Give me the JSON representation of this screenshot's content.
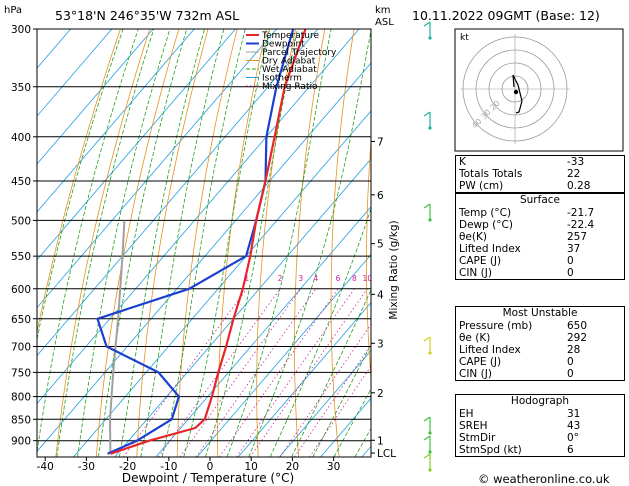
{
  "header": {
    "location": "53°18'N  246°35'W  732m  ASL",
    "datetime": "10.11.2022  09GMT  (Base: 12)",
    "unit_left": "hPa",
    "unit_right_1": "km",
    "unit_right_2": "ASL"
  },
  "chart_data": {
    "type": "skew-t log-p",
    "xlabel": "Dewpoint / Temperature (°C)",
    "ylabel_right": "Mixing Ratio (g/kg)",
    "pressure_levels": [
      300,
      350,
      400,
      450,
      500,
      550,
      600,
      650,
      700,
      750,
      800,
      850,
      900
    ],
    "temperature_ticks": [
      -40,
      -30,
      -20,
      -10,
      0,
      10,
      20,
      30
    ],
    "km_ticks": [
      {
        "label": "1",
        "p": 899
      },
      {
        "label": "2",
        "p": 792
      },
      {
        "label": "3",
        "p": 694
      },
      {
        "label": "4",
        "p": 609
      },
      {
        "label": "5",
        "p": 532
      },
      {
        "label": "6",
        "p": 467
      },
      {
        "label": "7",
        "p": 405
      },
      {
        "label": "LCL",
        "p": 930
      }
    ],
    "mixing_ratio_labels": [
      "1",
      "2",
      "3",
      "4",
      "6",
      "8",
      "10",
      "16",
      "20",
      "25"
    ],
    "mixing_ratio_values": [
      1,
      2,
      3,
      4,
      6,
      8,
      10,
      16,
      20,
      25
    ],
    "legend": [
      "Temperature",
      "Dewpoint",
      "Parcel Trajectory",
      "Dry Adiabat",
      "Wet Adiabat",
      "Isotherm",
      "Mixing Ratio"
    ],
    "colors": {
      "temperature": "#e8262a",
      "dewpoint": "#1a3fd1",
      "parcel": "#a0a0a0",
      "dry_adiabat": "#e89020",
      "wet_adiabat": "#20a020",
      "isotherm": "#20a0e0",
      "mixing_ratio": "#d020a0"
    },
    "temperature_profile": [
      {
        "p": 932,
        "t": -21.7
      },
      {
        "p": 900,
        "t": -15
      },
      {
        "p": 870,
        "t": -6.5
      },
      {
        "p": 850,
        "t": -6
      },
      {
        "p": 800,
        "t": -9
      },
      {
        "p": 750,
        "t": -12.5
      },
      {
        "p": 700,
        "t": -16
      },
      {
        "p": 650,
        "t": -20
      },
      {
        "p": 600,
        "t": -24
      },
      {
        "p": 550,
        "t": -29
      },
      {
        "p": 500,
        "t": -35
      },
      {
        "p": 450,
        "t": -41
      },
      {
        "p": 400,
        "t": -48
      },
      {
        "p": 350,
        "t": -56
      },
      {
        "p": 300,
        "t": -63
      }
    ],
    "dewpoint_profile": [
      {
        "p": 932,
        "t": -22.4
      },
      {
        "p": 900,
        "t": -18
      },
      {
        "p": 850,
        "t": -14
      },
      {
        "p": 800,
        "t": -17
      },
      {
        "p": 750,
        "t": -27
      },
      {
        "p": 700,
        "t": -45
      },
      {
        "p": 650,
        "t": -53
      },
      {
        "p": 600,
        "t": -37
      },
      {
        "p": 550,
        "t": -30
      },
      {
        "p": 500,
        "t": -35
      },
      {
        "p": 450,
        "t": -41
      },
      {
        "p": 400,
        "t": -50
      },
      {
        "p": 350,
        "t": -58
      },
      {
        "p": 300,
        "t": -66
      }
    ],
    "parcel_profile": [
      {
        "p": 932,
        "t": -21.7
      },
      {
        "p": 850,
        "t": -29
      },
      {
        "p": 750,
        "t": -38
      },
      {
        "p": 650,
        "t": -48
      },
      {
        "p": 550,
        "t": -60
      },
      {
        "p": 500,
        "t": -67
      }
    ]
  },
  "hodograph": {
    "label": "kt",
    "ring_labels": [
      "10",
      "20",
      "30",
      "40"
    ]
  },
  "indices": [
    {
      "label": "K",
      "value": "-33"
    },
    {
      "label": "Totals Totals",
      "value": "22"
    },
    {
      "label": "PW (cm)",
      "value": "0.28"
    }
  ],
  "surface": {
    "title": "Surface",
    "rows": [
      {
        "label": "Temp (°C)",
        "value": "-21.7"
      },
      {
        "label": "Dewp (°C)",
        "value": "-22.4"
      },
      {
        "label": "θe(K)",
        "value": "257"
      },
      {
        "label": "Lifted Index",
        "value": "37"
      },
      {
        "label": "CAPE (J)",
        "value": "0"
      },
      {
        "label": "CIN (J)",
        "value": "0"
      }
    ]
  },
  "most_unstable": {
    "title": "Most Unstable",
    "rows": [
      {
        "label": "Pressure (mb)",
        "value": "650"
      },
      {
        "label": "θe (K)",
        "value": "292"
      },
      {
        "label": "Lifted Index",
        "value": "28"
      },
      {
        "label": "CAPE (J)",
        "value": "0"
      },
      {
        "label": "CIN (J)",
        "value": "0"
      }
    ]
  },
  "hodograph_table": {
    "title": "Hodograph",
    "rows": [
      {
        "label": "EH",
        "value": "31"
      },
      {
        "label": "SREH",
        "value": "43"
      },
      {
        "label": "StmDir",
        "value": "0°"
      },
      {
        "label": "StmSpd (kt)",
        "value": "6"
      }
    ]
  },
  "footer": {
    "copyright": "© weatheronline.co.uk"
  }
}
